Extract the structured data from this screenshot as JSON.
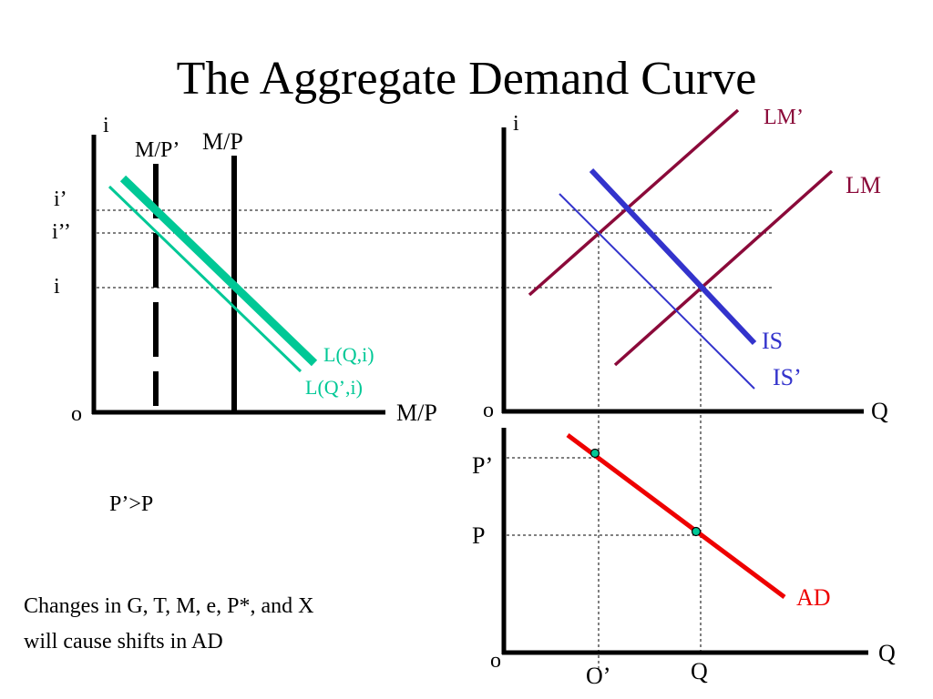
{
  "title": "The Aggregate Demand Curve",
  "colors": {
    "black": "#000000",
    "money_demand": "#00c896",
    "lm": "#8b0a3a",
    "is": "#3333cc",
    "ad": "#ee0000",
    "point_fill": "#00c896"
  },
  "money_market": {
    "y_axis_label": "i",
    "x_axis_label": "M/P",
    "origin_label": "o",
    "rate_labels": [
      "i’",
      "i’’",
      "i"
    ],
    "supply_new_label": "M/P’",
    "supply_label": "M/P",
    "demand_label": "L(Q,i)",
    "demand_new_label": "L(Q’,i)"
  },
  "is_lm": {
    "y_axis_label": "i",
    "x_axis_label": "Q",
    "origin_label": "o",
    "lm_new_label": "LM’",
    "lm_label": "LM",
    "is_label": "IS",
    "is_new_label": "IS’"
  },
  "ad_panel": {
    "x_axis_label": "Q",
    "origin_label": "o",
    "price_new_label": "P’",
    "price_label": "P",
    "q_new_label": "O’",
    "q_label": "Q",
    "ad_label": "AD"
  },
  "notes": {
    "comparison": "P’>P",
    "shifts": [
      "Changes in G, T, M, e, P*, and X",
      "will cause shifts in AD"
    ]
  }
}
